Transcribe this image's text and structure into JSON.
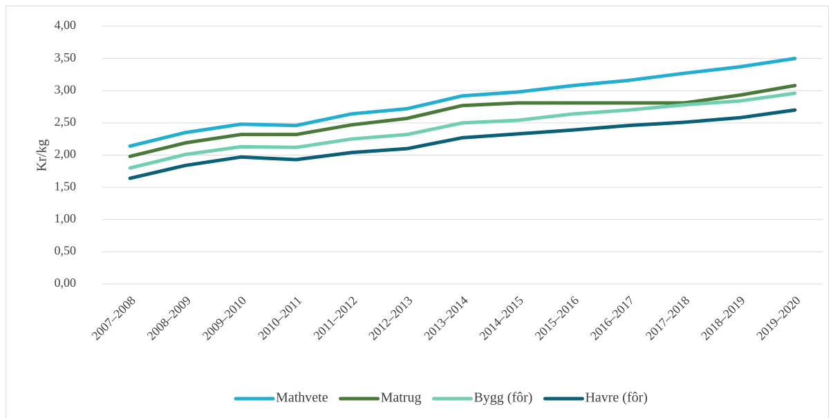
{
  "chart_data": {
    "type": "line",
    "y_label": "Kr/kg",
    "categories": [
      "2007–2008",
      "2008–2009",
      "2009–2010",
      "2010–2011",
      "2011–2012",
      "2012–2013",
      "2013–2014",
      "2014–2015",
      "2015–2016",
      "2016–2017",
      "2017–2018",
      "2018–2019",
      "2019–2020"
    ],
    "series": [
      {
        "name": "Mathvete",
        "color": "#22aed3",
        "values": [
          2.14,
          2.35,
          2.48,
          2.46,
          2.64,
          2.72,
          2.92,
          2.98,
          3.08,
          3.16,
          3.27,
          3.37,
          3.5
        ]
      },
      {
        "name": "Matrug",
        "color": "#4a7a3a",
        "values": [
          1.98,
          2.19,
          2.32,
          2.32,
          2.47,
          2.57,
          2.77,
          2.81,
          2.81,
          2.81,
          2.81,
          2.93,
          3.08
        ]
      },
      {
        "name": "Bygg (fôr)",
        "color": "#6fcfb0",
        "values": [
          1.8,
          2.01,
          2.13,
          2.12,
          2.25,
          2.32,
          2.5,
          2.54,
          2.64,
          2.7,
          2.78,
          2.84,
          2.96
        ]
      },
      {
        "name": "Havre (fôr)",
        "color": "#0b6079",
        "values": [
          1.64,
          1.84,
          1.97,
          1.93,
          2.04,
          2.1,
          2.27,
          2.33,
          2.39,
          2.46,
          2.51,
          2.58,
          2.7
        ]
      }
    ],
    "ylim": [
      0,
      4
    ],
    "yticks": [
      {
        "value": 0,
        "label": "0,00"
      },
      {
        "value": 0.5,
        "label": "0,50"
      },
      {
        "value": 1,
        "label": "1,00"
      },
      {
        "value": 1.5,
        "label": "1,50"
      },
      {
        "value": 2,
        "label": "2,00"
      },
      {
        "value": 2.5,
        "label": "2,50"
      },
      {
        "value": 3,
        "label": "3,00"
      },
      {
        "value": 3.5,
        "label": "3,50"
      },
      {
        "value": 4,
        "label": "4,00"
      }
    ],
    "grid": true,
    "legend": "bottom"
  }
}
